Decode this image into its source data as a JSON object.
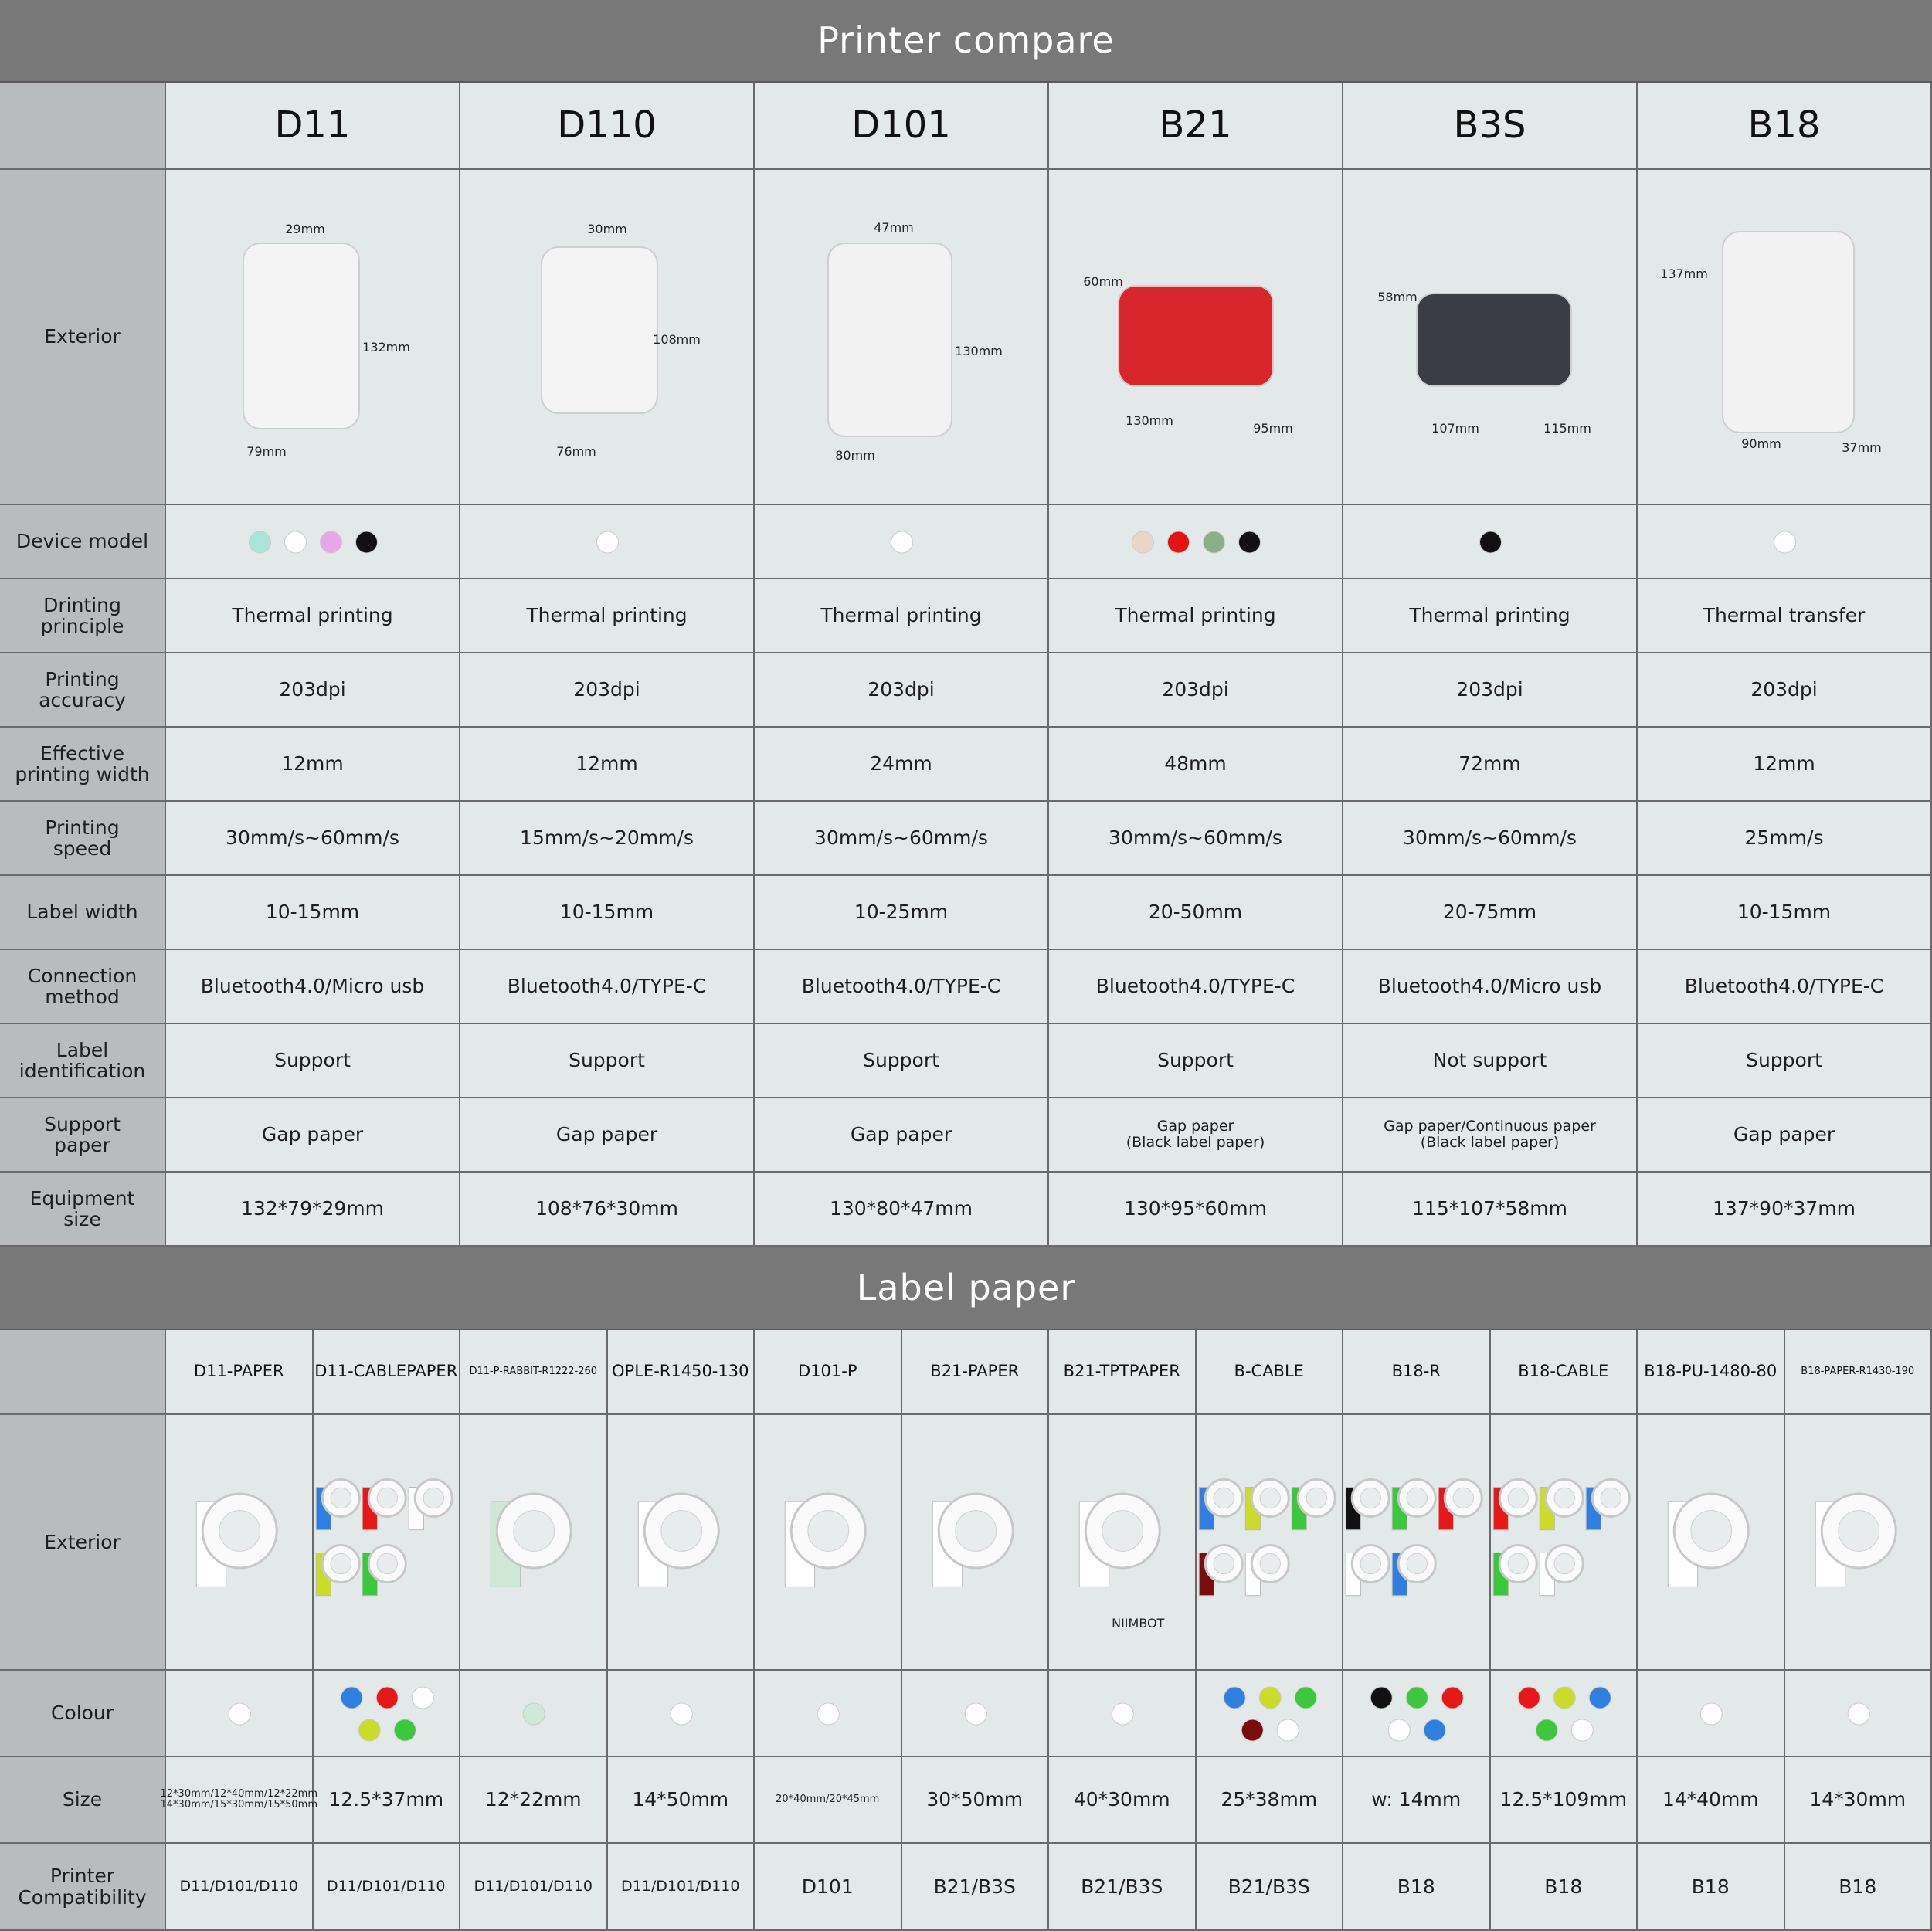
{
  "printer_compare": {
    "title": "Printer compare",
    "row_labels": [
      "Exterior",
      "Device model",
      "Drinting\nprinciple",
      "Printing\naccuracy",
      "Effective\nprinting width",
      "Printing\nspeed",
      "Label width",
      "Connection\nmethod",
      "Label\nidentification",
      "Support\npaper",
      "Equipment\nsize"
    ],
    "printers": [
      {
        "name": "D11",
        "dims": [
          "29mm",
          "132mm",
          "79mm"
        ],
        "colors": [
          "#a8e6d9",
          "#ffffff",
          "#e8a6e6",
          "#111111"
        ],
        "specs": [
          "Thermal printing",
          "203dpi",
          "12mm",
          "30mm/s~60mm/s",
          "10-15mm",
          "Bluetooth4.0/Micro usb",
          "Support",
          "Gap paper",
          "132*79*29mm"
        ]
      },
      {
        "name": "D110",
        "dims": [
          "30mm",
          "108mm",
          "76mm"
        ],
        "colors": [
          "#ffffff"
        ],
        "specs": [
          "Thermal printing",
          "203dpi",
          "12mm",
          "15mm/s~20mm/s",
          "10-15mm",
          "Bluetooth4.0/TYPE-C",
          "Support",
          "Gap paper",
          "108*76*30mm"
        ]
      },
      {
        "name": "D101",
        "dims": [
          "47mm",
          "130mm",
          "80mm"
        ],
        "colors": [
          "#ffffff"
        ],
        "specs": [
          "Thermal printing",
          "203dpi",
          "24mm",
          "30mm/s~60mm/s",
          "10-25mm",
          "Bluetooth4.0/TYPE-C",
          "Support",
          "Gap paper",
          "130*80*47mm"
        ]
      },
      {
        "name": "B21",
        "dims": [
          "60mm",
          "130mm",
          "95mm"
        ],
        "colors": [
          "#e8d6c6",
          "#e81010",
          "#8ab08a",
          "#111111"
        ],
        "specs": [
          "Thermal printing",
          "203dpi",
          "48mm",
          "30mm/s~60mm/s",
          "20-50mm",
          "Bluetooth4.0/TYPE-C",
          "Support",
          "Gap paper\n(Black label paper)",
          "130*95*60mm"
        ]
      },
      {
        "name": "B3S",
        "dims": [
          "58mm",
          "107mm",
          "115mm"
        ],
        "colors": [
          "#111111"
        ],
        "specs": [
          "Thermal printing",
          "203dpi",
          "72mm",
          "30mm/s~60mm/s",
          "20-75mm",
          "Bluetooth4.0/Micro usb",
          "Not support",
          "Gap paper/Continuous paper\n(Black label paper)",
          "115*107*58mm"
        ]
      },
      {
        "name": "B18",
        "dims": [
          "137mm",
          "90mm",
          "37mm"
        ],
        "colors": [
          "#ffffff"
        ],
        "specs": [
          "Thermal transfer",
          "203dpi",
          "12mm",
          "25mm/s",
          "10-15mm",
          "Bluetooth4.0/TYPE-C",
          "Support",
          "Gap paper",
          "137*90*37mm"
        ]
      }
    ]
  },
  "label_paper": {
    "title": "Label paper",
    "row_labels": [
      "Exterior",
      "Colour",
      "Size",
      "Printer\nCompatibility"
    ],
    "items": [
      {
        "name": "D11-PAPER",
        "colors": [
          "#ffffff"
        ],
        "size": "12*30mm/12*40mm/12*22mm\n14*30mm/15*30mm/15*50mm",
        "compat": "D11/D101/D110"
      },
      {
        "name": "D11-CABLEPAPER",
        "colors": [
          "#2f7fe0",
          "#e81818",
          "#ffffff",
          "#c8dc28",
          "#3cc83c"
        ],
        "size": "12.5*37mm",
        "compat": "D11/D101/D110"
      },
      {
        "name": "D11-P-RABBIT-R1222-260",
        "colors": [
          "#cfe8d8"
        ],
        "size": "12*22mm",
        "compat": "D11/D101/D110"
      },
      {
        "name": "OPLE-R1450-130",
        "colors": [
          "#ffffff"
        ],
        "size": "14*50mm",
        "compat": "D11/D101/D110"
      },
      {
        "name": "D101-P",
        "colors": [
          "#ffffff"
        ],
        "size": "20*40mm/20*45mm",
        "compat": "D101"
      },
      {
        "name": "B21-PAPER",
        "colors": [
          "#ffffff"
        ],
        "size": "30*50mm",
        "compat": "B21/B3S"
      },
      {
        "name": "B21-TPTPAPER",
        "colors": [
          "#ffffff"
        ],
        "size": "40*30mm",
        "compat": "B21/B3S",
        "image_text": "NIIMBOT"
      },
      {
        "name": "B-CABLE",
        "colors": [
          "#2f7fe0",
          "#c8dc28",
          "#3cc83c",
          "#7a0c0c",
          "#ffffff"
        ],
        "size": "25*38mm",
        "compat": "B21/B3S"
      },
      {
        "name": "B18-R",
        "colors": [
          "#111111",
          "#3cc83c",
          "#e81818",
          "#ffffff",
          "#2f7fe0"
        ],
        "size": "w: 14mm",
        "compat": "B18"
      },
      {
        "name": "B18-CABLE",
        "colors": [
          "#e81818",
          "#c8dc28",
          "#2f7fe0",
          "#3cc83c",
          "#ffffff"
        ],
        "size": "12.5*109mm",
        "compat": "B18"
      },
      {
        "name": "B18-PU-1480-80",
        "colors": [
          "#ffffff"
        ],
        "size": "14*40mm",
        "compat": "B18"
      },
      {
        "name": "B18-PAPER-R1430-190",
        "colors": [
          "#ffffff"
        ],
        "size": "14*30mm",
        "compat": "B18"
      }
    ]
  }
}
